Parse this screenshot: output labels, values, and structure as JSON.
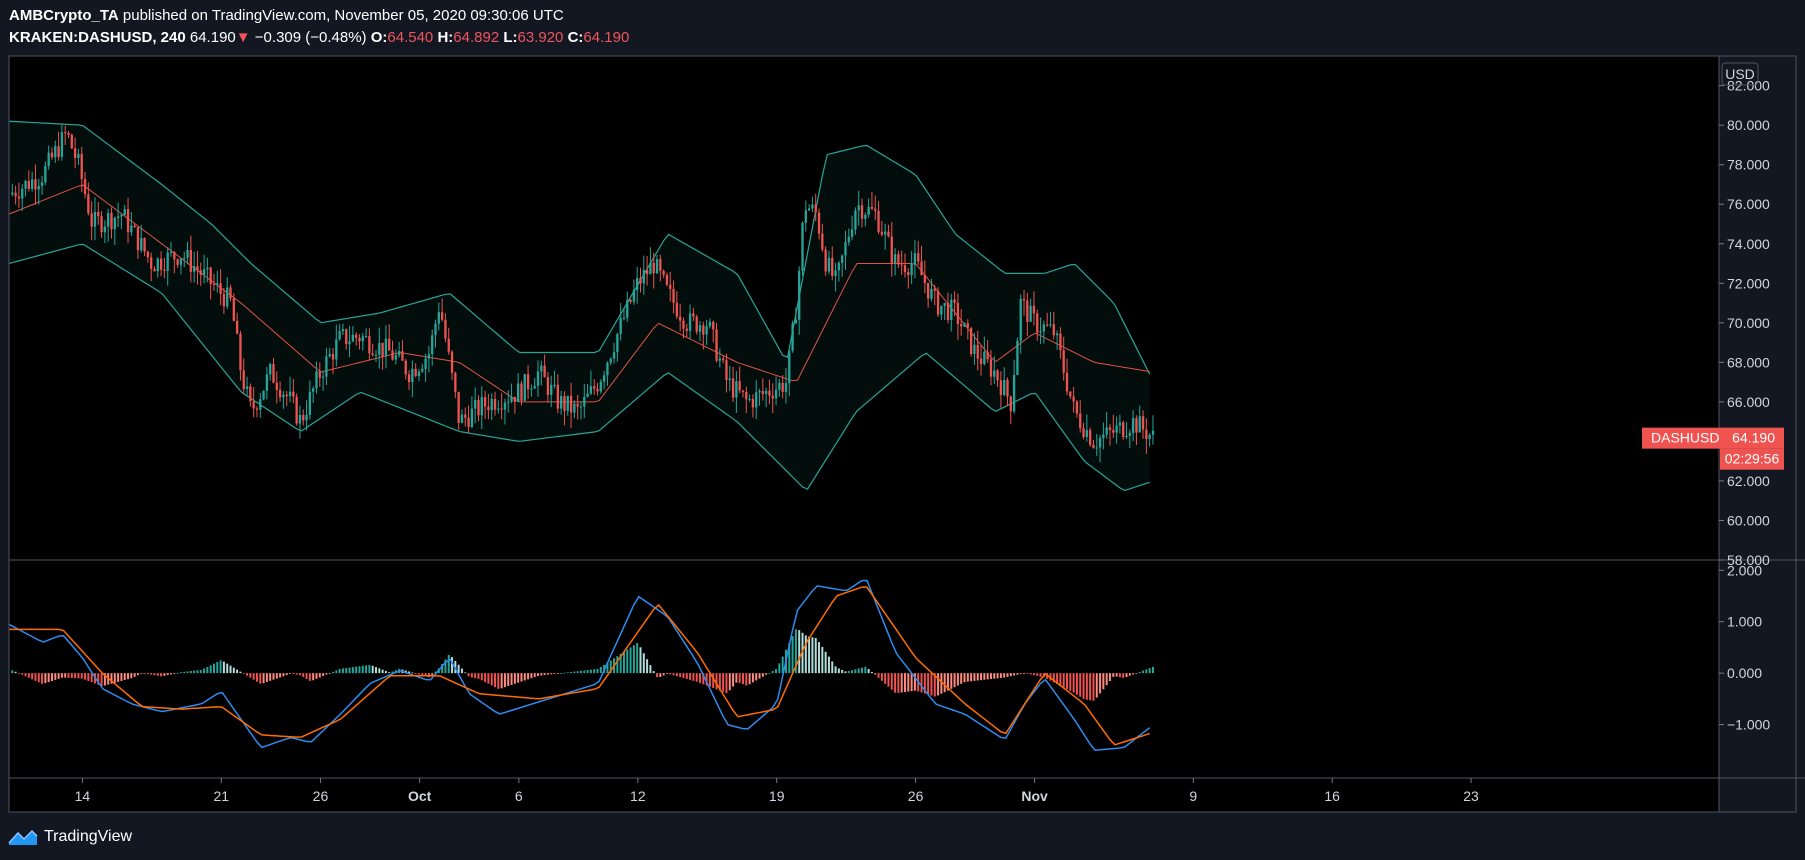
{
  "header": {
    "publisher": "AMBCrypto_TA",
    "published_text": "published on TradingView.com, November 05, 2020 09:30:06 UTC",
    "symbol": "KRAKEN:DASHUSD, 240",
    "last": "64.190",
    "change_arrow": "▼",
    "change": "−0.309 (−0.48%)",
    "o_label": "O:",
    "o_value": "64.540",
    "h_label": "H:",
    "h_value": "64.892",
    "l_label": "L:",
    "l_value": "63.920",
    "c_label": "C:",
    "c_value": "64.190"
  },
  "price_axis": {
    "currency": "USD",
    "symbol_tag": "DASHUSD",
    "last_price_label": "64.190",
    "countdown": "02:29:56"
  },
  "footer": {
    "brand": "TradingView",
    "logo_icon": "tradingview-logo-icon"
  },
  "colors": {
    "background": "#131722",
    "up_candle": "#26a69a",
    "down_candle": "#ef5350",
    "bollinger_band": "#26a69a",
    "bollinger_basis": "#e35243",
    "macd_line": "#2d8cf0",
    "signal_line": "#ff6d00",
    "hist_up": "#b2dfdb",
    "hist_down": "#ff8a80"
  },
  "chart_data": [
    {
      "type": "candlestick",
      "title": "",
      "indicators": [
        "Bollinger Bands (upper, basis, lower)"
      ],
      "y_tick_labels": [
        "58.000",
        "60.000",
        "62.000",
        "64.000",
        "66.000",
        "68.000",
        "70.000",
        "72.000",
        "74.000",
        "76.000",
        "78.000",
        "80.000",
        "82.000"
      ],
      "ylim": [
        58,
        83.5
      ],
      "x_tick_labels": [
        "14",
        "21",
        "26",
        "Oct",
        "6",
        "12",
        "19",
        "26",
        "Nov",
        "9",
        "16",
        "23"
      ],
      "x_tick_days": [
        14,
        21,
        26,
        31,
        36,
        42,
        49,
        56,
        62,
        70,
        77,
        84
      ],
      "xlim_days": [
        10.3,
        96.5
      ],
      "x_units": "days since Sep 0, 2020",
      "grid": false,
      "close_keypoints": [
        {
          "day": 10.3,
          "close": 76.5
        },
        {
          "day": 12.0,
          "close": 77.5
        },
        {
          "day": 13.2,
          "close": 79.6
        },
        {
          "day": 13.8,
          "close": 78.0
        },
        {
          "day": 14.5,
          "close": 75.0
        },
        {
          "day": 16.0,
          "close": 75.5
        },
        {
          "day": 17.5,
          "close": 73.0
        },
        {
          "day": 19.0,
          "close": 73.5
        },
        {
          "day": 20.5,
          "close": 72.0
        },
        {
          "day": 21.5,
          "close": 71.0
        },
        {
          "day": 22.0,
          "close": 67.5
        },
        {
          "day": 22.5,
          "close": 65.5
        },
        {
          "day": 23.5,
          "close": 67.5
        },
        {
          "day": 24.5,
          "close": 66.0
        },
        {
          "day": 25.0,
          "close": 65.0
        },
        {
          "day": 26.0,
          "close": 67.5
        },
        {
          "day": 27.0,
          "close": 69.2
        },
        {
          "day": 28.0,
          "close": 69.3
        },
        {
          "day": 29.5,
          "close": 68.5
        },
        {
          "day": 30.5,
          "close": 67.5
        },
        {
          "day": 31.5,
          "close": 68.5
        },
        {
          "day": 32.0,
          "close": 71.0
        },
        {
          "day": 32.5,
          "close": 68.0
        },
        {
          "day": 33.0,
          "close": 65.0
        },
        {
          "day": 34.5,
          "close": 66.0
        },
        {
          "day": 36.0,
          "close": 66.5
        },
        {
          "day": 37.0,
          "close": 67.5
        },
        {
          "day": 38.0,
          "close": 66.0
        },
        {
          "day": 39.0,
          "close": 65.5
        },
        {
          "day": 40.0,
          "close": 67.0
        },
        {
          "day": 41.0,
          "close": 69.5
        },
        {
          "day": 42.0,
          "close": 72.0
        },
        {
          "day": 42.8,
          "close": 73.0
        },
        {
          "day": 43.5,
          "close": 71.5
        },
        {
          "day": 44.5,
          "close": 70.0
        },
        {
          "day": 45.5,
          "close": 70.0
        },
        {
          "day": 46.5,
          "close": 67.0
        },
        {
          "day": 47.5,
          "close": 66.0
        },
        {
          "day": 48.5,
          "close": 66.5
        },
        {
          "day": 49.5,
          "close": 67.0
        },
        {
          "day": 50.0,
          "close": 71.0
        },
        {
          "day": 50.4,
          "close": 76.0
        },
        {
          "day": 51.0,
          "close": 75.5
        },
        {
          "day": 51.5,
          "close": 73.0
        },
        {
          "day": 52.0,
          "close": 72.0
        },
        {
          "day": 53.0,
          "close": 76.0
        },
        {
          "day": 54.0,
          "close": 75.5
        },
        {
          "day": 55.0,
          "close": 73.0
        },
        {
          "day": 56.0,
          "close": 73.0
        },
        {
          "day": 57.0,
          "close": 71.0
        },
        {
          "day": 58.0,
          "close": 70.5
        },
        {
          "day": 59.0,
          "close": 68.5
        },
        {
          "day": 60.0,
          "close": 67.5
        },
        {
          "day": 60.8,
          "close": 66.0
        },
        {
          "day": 61.3,
          "close": 71.0
        },
        {
          "day": 62.0,
          "close": 70.0
        },
        {
          "day": 63.0,
          "close": 69.5
        },
        {
          "day": 64.0,
          "close": 65.5
        },
        {
          "day": 65.0,
          "close": 64.0
        },
        {
          "day": 66.0,
          "close": 64.5
        },
        {
          "day": 67.0,
          "close": 65.0
        },
        {
          "day": 68.0,
          "close": 64.19
        }
      ],
      "bollinger_basis_keypoints": [
        {
          "day": 10.3,
          "value": 75.5
        },
        {
          "day": 14.0,
          "value": 77.0
        },
        {
          "day": 18.0,
          "value": 74.0
        },
        {
          "day": 22.0,
          "value": 71.0
        },
        {
          "day": 26.0,
          "value": 67.5
        },
        {
          "day": 30.0,
          "value": 68.5
        },
        {
          "day": 33.0,
          "value": 68.0
        },
        {
          "day": 36.0,
          "value": 66.0
        },
        {
          "day": 40.0,
          "value": 66.0
        },
        {
          "day": 43.0,
          "value": 70.0
        },
        {
          "day": 47.0,
          "value": 68.0
        },
        {
          "day": 50.0,
          "value": 67.0
        },
        {
          "day": 53.0,
          "value": 73.0
        },
        {
          "day": 56.0,
          "value": 73.0
        },
        {
          "day": 60.0,
          "value": 68.0
        },
        {
          "day": 62.0,
          "value": 69.5
        },
        {
          "day": 65.0,
          "value": 68.0
        },
        {
          "day": 68.0,
          "value": 67.5
        }
      ],
      "bollinger_upper_keypoints": [
        {
          "day": 10.3,
          "value": 80.2
        },
        {
          "day": 14.0,
          "value": 80.0
        },
        {
          "day": 18.0,
          "value": 77.0
        },
        {
          "day": 20.5,
          "value": 75.0
        },
        {
          "day": 22.5,
          "value": 73.0
        },
        {
          "day": 26.0,
          "value": 70.0
        },
        {
          "day": 29.0,
          "value": 70.5
        },
        {
          "day": 32.5,
          "value": 71.5
        },
        {
          "day": 36.0,
          "value": 68.5
        },
        {
          "day": 40.0,
          "value": 68.5
        },
        {
          "day": 43.5,
          "value": 74.5
        },
        {
          "day": 47.0,
          "value": 72.5
        },
        {
          "day": 49.5,
          "value": 68.0
        },
        {
          "day": 51.5,
          "value": 78.5
        },
        {
          "day": 53.5,
          "value": 79.0
        },
        {
          "day": 56.0,
          "value": 77.5
        },
        {
          "day": 58.0,
          "value": 74.5
        },
        {
          "day": 60.5,
          "value": 72.5
        },
        {
          "day": 62.5,
          "value": 72.5
        },
        {
          "day": 64.0,
          "value": 73.0
        },
        {
          "day": 66.0,
          "value": 71.0
        },
        {
          "day": 68.0,
          "value": 67.0
        }
      ],
      "bollinger_lower_keypoints": [
        {
          "day": 10.3,
          "value": 73.0
        },
        {
          "day": 14.0,
          "value": 74.0
        },
        {
          "day": 18.0,
          "value": 71.5
        },
        {
          "day": 22.0,
          "value": 66.5
        },
        {
          "day": 25.0,
          "value": 64.5
        },
        {
          "day": 28.0,
          "value": 66.5
        },
        {
          "day": 33.0,
          "value": 64.5
        },
        {
          "day": 36.0,
          "value": 64.0
        },
        {
          "day": 40.0,
          "value": 64.5
        },
        {
          "day": 43.5,
          "value": 67.5
        },
        {
          "day": 47.0,
          "value": 65.0
        },
        {
          "day": 50.5,
          "value": 61.5
        },
        {
          "day": 53.0,
          "value": 65.5
        },
        {
          "day": 56.5,
          "value": 68.5
        },
        {
          "day": 60.0,
          "value": 65.5
        },
        {
          "day": 62.0,
          "value": 66.5
        },
        {
          "day": 64.5,
          "value": 63.0
        },
        {
          "day": 66.5,
          "value": 61.5
        },
        {
          "day": 68.0,
          "value": 62.0
        }
      ]
    },
    {
      "type": "line",
      "title": "",
      "indicators": [
        "MACD",
        "Signal",
        "Histogram"
      ],
      "y_tick_labels": [
        "2.000",
        "1.000",
        "0.000",
        "−1.000"
      ],
      "ylim": [
        -2.0,
        2.2
      ],
      "grid": false,
      "series": [
        {
          "name": "",
          "keypoints": [
            {
              "day": 10.3,
              "value": 0.95
            },
            {
              "day": 12.0,
              "value": 0.6
            },
            {
              "day": 13.0,
              "value": 0.75
            },
            {
              "day": 14.0,
              "value": 0.3
            },
            {
              "day": 15.0,
              "value": -0.3
            },
            {
              "day": 16.5,
              "value": -0.6
            },
            {
              "day": 18.0,
              "value": -0.75
            },
            {
              "day": 20.0,
              "value": -0.6
            },
            {
              "day": 21.0,
              "value": -0.35
            },
            {
              "day": 22.0,
              "value": -0.9
            },
            {
              "day": 23.0,
              "value": -1.45
            },
            {
              "day": 24.5,
              "value": -1.25
            },
            {
              "day": 25.5,
              "value": -1.35
            },
            {
              "day": 27.0,
              "value": -0.8
            },
            {
              "day": 28.5,
              "value": -0.2
            },
            {
              "day": 30.0,
              "value": 0.05
            },
            {
              "day": 31.5,
              "value": -0.15
            },
            {
              "day": 32.5,
              "value": 0.3
            },
            {
              "day": 33.5,
              "value": -0.4
            },
            {
              "day": 35.0,
              "value": -0.8
            },
            {
              "day": 37.5,
              "value": -0.5
            },
            {
              "day": 40.0,
              "value": -0.2
            },
            {
              "day": 42.0,
              "value": 1.5
            },
            {
              "day": 43.5,
              "value": 1.1
            },
            {
              "day": 45.0,
              "value": 0.2
            },
            {
              "day": 46.5,
              "value": -1.0
            },
            {
              "day": 47.5,
              "value": -1.1
            },
            {
              "day": 49.0,
              "value": -0.6
            },
            {
              "day": 50.0,
              "value": 1.2
            },
            {
              "day": 51.0,
              "value": 1.7
            },
            {
              "day": 52.5,
              "value": 1.6
            },
            {
              "day": 53.5,
              "value": 1.85
            },
            {
              "day": 55.0,
              "value": 0.4
            },
            {
              "day": 57.0,
              "value": -0.6
            },
            {
              "day": 58.5,
              "value": -0.8
            },
            {
              "day": 60.5,
              "value": -1.3
            },
            {
              "day": 61.5,
              "value": -0.6
            },
            {
              "day": 62.5,
              "value": -0.1
            },
            {
              "day": 64.0,
              "value": -0.9
            },
            {
              "day": 65.0,
              "value": -1.5
            },
            {
              "day": 66.5,
              "value": -1.45
            },
            {
              "day": 68.0,
              "value": -1.0
            }
          ]
        },
        {
          "name": "",
          "keypoints": [
            {
              "day": 10.3,
              "value": 0.85
            },
            {
              "day": 13.0,
              "value": 0.85
            },
            {
              "day": 15.0,
              "value": 0.0
            },
            {
              "day": 17.0,
              "value": -0.65
            },
            {
              "day": 19.0,
              "value": -0.7
            },
            {
              "day": 21.0,
              "value": -0.65
            },
            {
              "day": 23.0,
              "value": -1.2
            },
            {
              "day": 25.0,
              "value": -1.25
            },
            {
              "day": 27.0,
              "value": -0.9
            },
            {
              "day": 29.5,
              "value": -0.05
            },
            {
              "day": 32.0,
              "value": -0.05
            },
            {
              "day": 34.0,
              "value": -0.4
            },
            {
              "day": 37.0,
              "value": -0.5
            },
            {
              "day": 40.0,
              "value": -0.3
            },
            {
              "day": 43.0,
              "value": 1.35
            },
            {
              "day": 45.0,
              "value": 0.4
            },
            {
              "day": 47.0,
              "value": -0.85
            },
            {
              "day": 49.0,
              "value": -0.7
            },
            {
              "day": 50.5,
              "value": 0.6
            },
            {
              "day": 52.0,
              "value": 1.5
            },
            {
              "day": 53.5,
              "value": 1.7
            },
            {
              "day": 56.0,
              "value": 0.3
            },
            {
              "day": 58.5,
              "value": -0.6
            },
            {
              "day": 60.5,
              "value": -1.2
            },
            {
              "day": 62.5,
              "value": 0.0
            },
            {
              "day": 64.5,
              "value": -0.6
            },
            {
              "day": 66.0,
              "value": -1.4
            },
            {
              "day": 68.0,
              "value": -1.15
            }
          ]
        }
      ]
    }
  ]
}
